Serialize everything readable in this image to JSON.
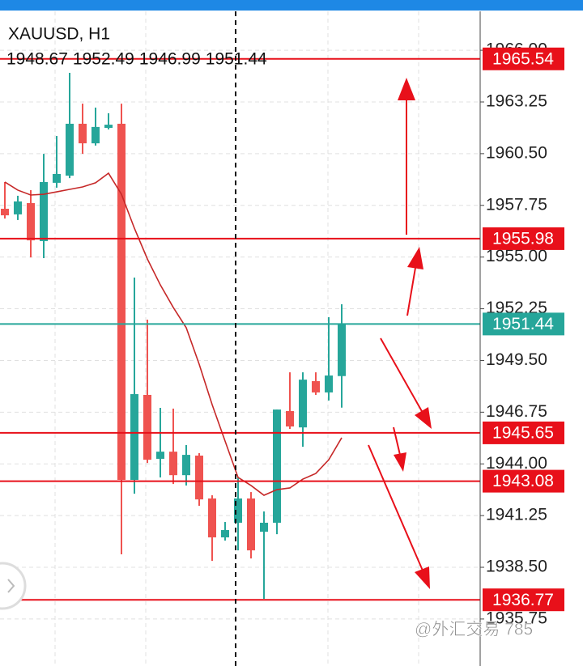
{
  "chart_data": {
    "type": "candlestick",
    "title": "XAUUSD, H1",
    "ohlc_header": [
      1948.67,
      1952.49,
      1946.99,
      1951.44
    ],
    "up_color": "#26a69a",
    "down_color": "#ef5350",
    "ylim": [
      1933.25,
      1968.07
    ],
    "yticks": [
      {
        "value": 1966,
        "label": "1966.00"
      },
      1963.25,
      {
        "value": 1960.5,
        "label": "1960.50"
      },
      1957.75,
      {
        "value": 1955,
        "label": "1955.00"
      },
      1952.25,
      {
        "value": 1949.5,
        "label": "1949.50"
      },
      1946.75,
      {
        "value": 1944,
        "label": "1944.00"
      },
      1941.25,
      {
        "value": 1938.5,
        "label": "1938.50"
      },
      1935.75
    ],
    "grid": true,
    "open": [
      1957.57,
      1957.27,
      1957.87,
      1955.85,
      1958.95,
      1959.33,
      1962.09,
      1961.05,
      1961.87,
      1962.09,
      1943.15,
      1947.67,
      1944.27,
      1944.65,
      1943.4,
      1944.44,
      1942.16,
      1940.09,
      1940.87,
      1942.16,
      1940.39,
      1940.87,
      1946.81,
      1945.94,
      1948.4,
      1947.8,
      1948.67
    ],
    "high": [
      1958.99,
      1958.26,
      1958.56,
      1960.49,
      1961.44,
      1964.8,
      1963.16,
      1962.95,
      1962.65,
      1963.16,
      1953.91,
      1951.67,
      1946.98,
      1946.94,
      1945.0,
      1944.57,
      1942.33,
      1940.91,
      1943.28,
      1942.5,
      1941.47,
      1946.89,
      1948.87,
      1948.87,
      1948.87,
      1951.8,
      1952.49
    ],
    "low": [
      1957.05,
      1956.97,
      1954.98,
      1954.94,
      1958.69,
      1959.2,
      1960.49,
      1960.93,
      1961.79,
      1939.19,
      1942.41,
      1944.05,
      1943.28,
      1942.93,
      1942.85,
      1941.77,
      1938.84,
      1939.92,
      1939.4,
      1938.97,
      1936.82,
      1940.26,
      1945.86,
      1944.91,
      1947.67,
      1947.37,
      1946.99
    ],
    "close": [
      1957.22,
      1957.96,
      1955.89,
      1958.99,
      1959.42,
      1962.09,
      1961.05,
      1961.92,
      1962.04,
      1943.15,
      1947.71,
      1944.22,
      1944.65,
      1943.4,
      1944.48,
      1942.11,
      1940.09,
      1940.48,
      1942.16,
      1939.4,
      1940.87,
      1946.89,
      1945.99,
      1948.48,
      1947.8,
      1948.7,
      1951.44
    ],
    "ma": {
      "color": "#c62828",
      "values": [
        1958.99,
        1958.56,
        1958.3,
        1958.34,
        1958.47,
        1958.6,
        1958.73,
        1958.95,
        1959.46,
        1958.34,
        1956.53,
        1954.9,
        1953.52,
        1952.32,
        1951.24,
        1949.3,
        1947.15,
        1945.21,
        1943.28,
        1942.85,
        1942.33,
        1942.63,
        1942.72,
        1943.19,
        1943.49,
        1944.22,
        1945.39
      ]
    },
    "levels": [
      {
        "value": 1965.54,
        "color": "#e8101a"
      },
      {
        "value": 1955.98,
        "color": "#e8101a"
      },
      {
        "value": 1951.44,
        "color": "#26a69a"
      },
      {
        "value": 1945.65,
        "color": "#e8101a"
      },
      {
        "value": 1943.08,
        "color": "#e8101a"
      },
      {
        "value": 1936.77,
        "color": "#e8101a"
      }
    ],
    "watermark": "@外汇交易 785"
  }
}
